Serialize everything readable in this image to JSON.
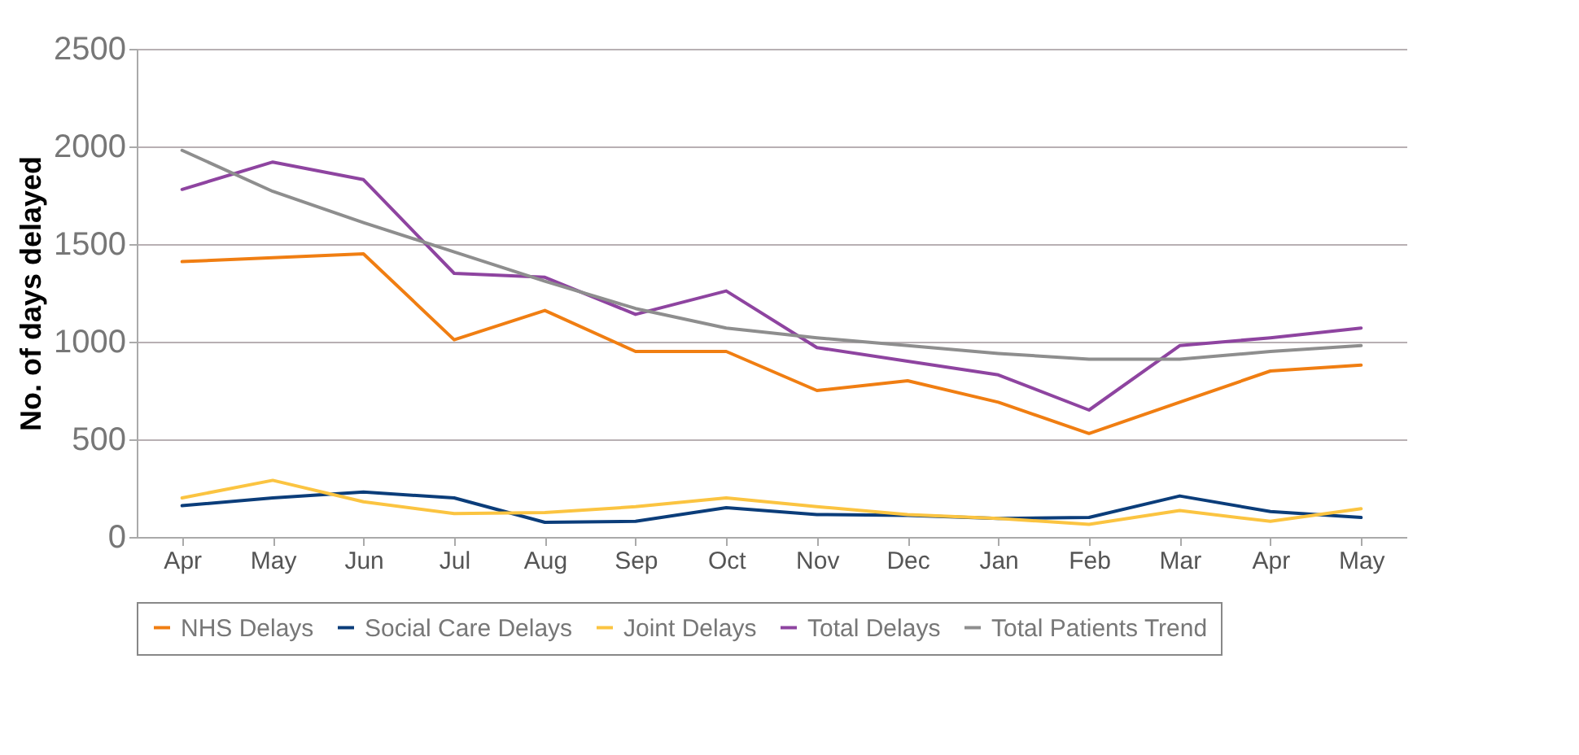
{
  "chart_data": {
    "type": "line",
    "ylabel": "No. of days delayed",
    "categories": [
      "Apr",
      "May",
      "Jun",
      "Jul",
      "Aug",
      "Sep",
      "Oct",
      "Nov",
      "Dec",
      "Jan",
      "Feb",
      "Mar",
      "Apr",
      "May"
    ],
    "series": [
      {
        "name": "NHS Delays",
        "color": "#f07e12",
        "values": [
          1410,
          1430,
          1450,
          1010,
          1160,
          950,
          950,
          750,
          800,
          690,
          530,
          690,
          850,
          880
        ]
      },
      {
        "name": "Social Care Delays",
        "color": "#0b3d7a",
        "values": [
          160,
          200,
          230,
          200,
          75,
          80,
          150,
          115,
          110,
          95,
          100,
          210,
          130,
          100
        ]
      },
      {
        "name": "Joint Delays",
        "color": "#fbc441",
        "values": [
          200,
          290,
          180,
          120,
          125,
          155,
          200,
          155,
          115,
          95,
          65,
          135,
          80,
          145
        ]
      },
      {
        "name": "Total Delays",
        "color": "#8e44a0",
        "values": [
          1780,
          1920,
          1830,
          1350,
          1330,
          1140,
          1260,
          970,
          900,
          830,
          650,
          980,
          1020,
          1070
        ]
      },
      {
        "name": "Total Patients Trend",
        "color": "#8e8e8e",
        "values": [
          1980,
          1770,
          1610,
          1460,
          1310,
          1170,
          1070,
          1020,
          980,
          940,
          910,
          910,
          950,
          980
        ]
      }
    ],
    "ylim": [
      0,
      2500
    ],
    "yticks": [
      0,
      500,
      1000,
      1500,
      2000,
      2500
    ],
    "grid": "y",
    "legend": "bottom",
    "marker": "none",
    "line_style": "solid"
  }
}
